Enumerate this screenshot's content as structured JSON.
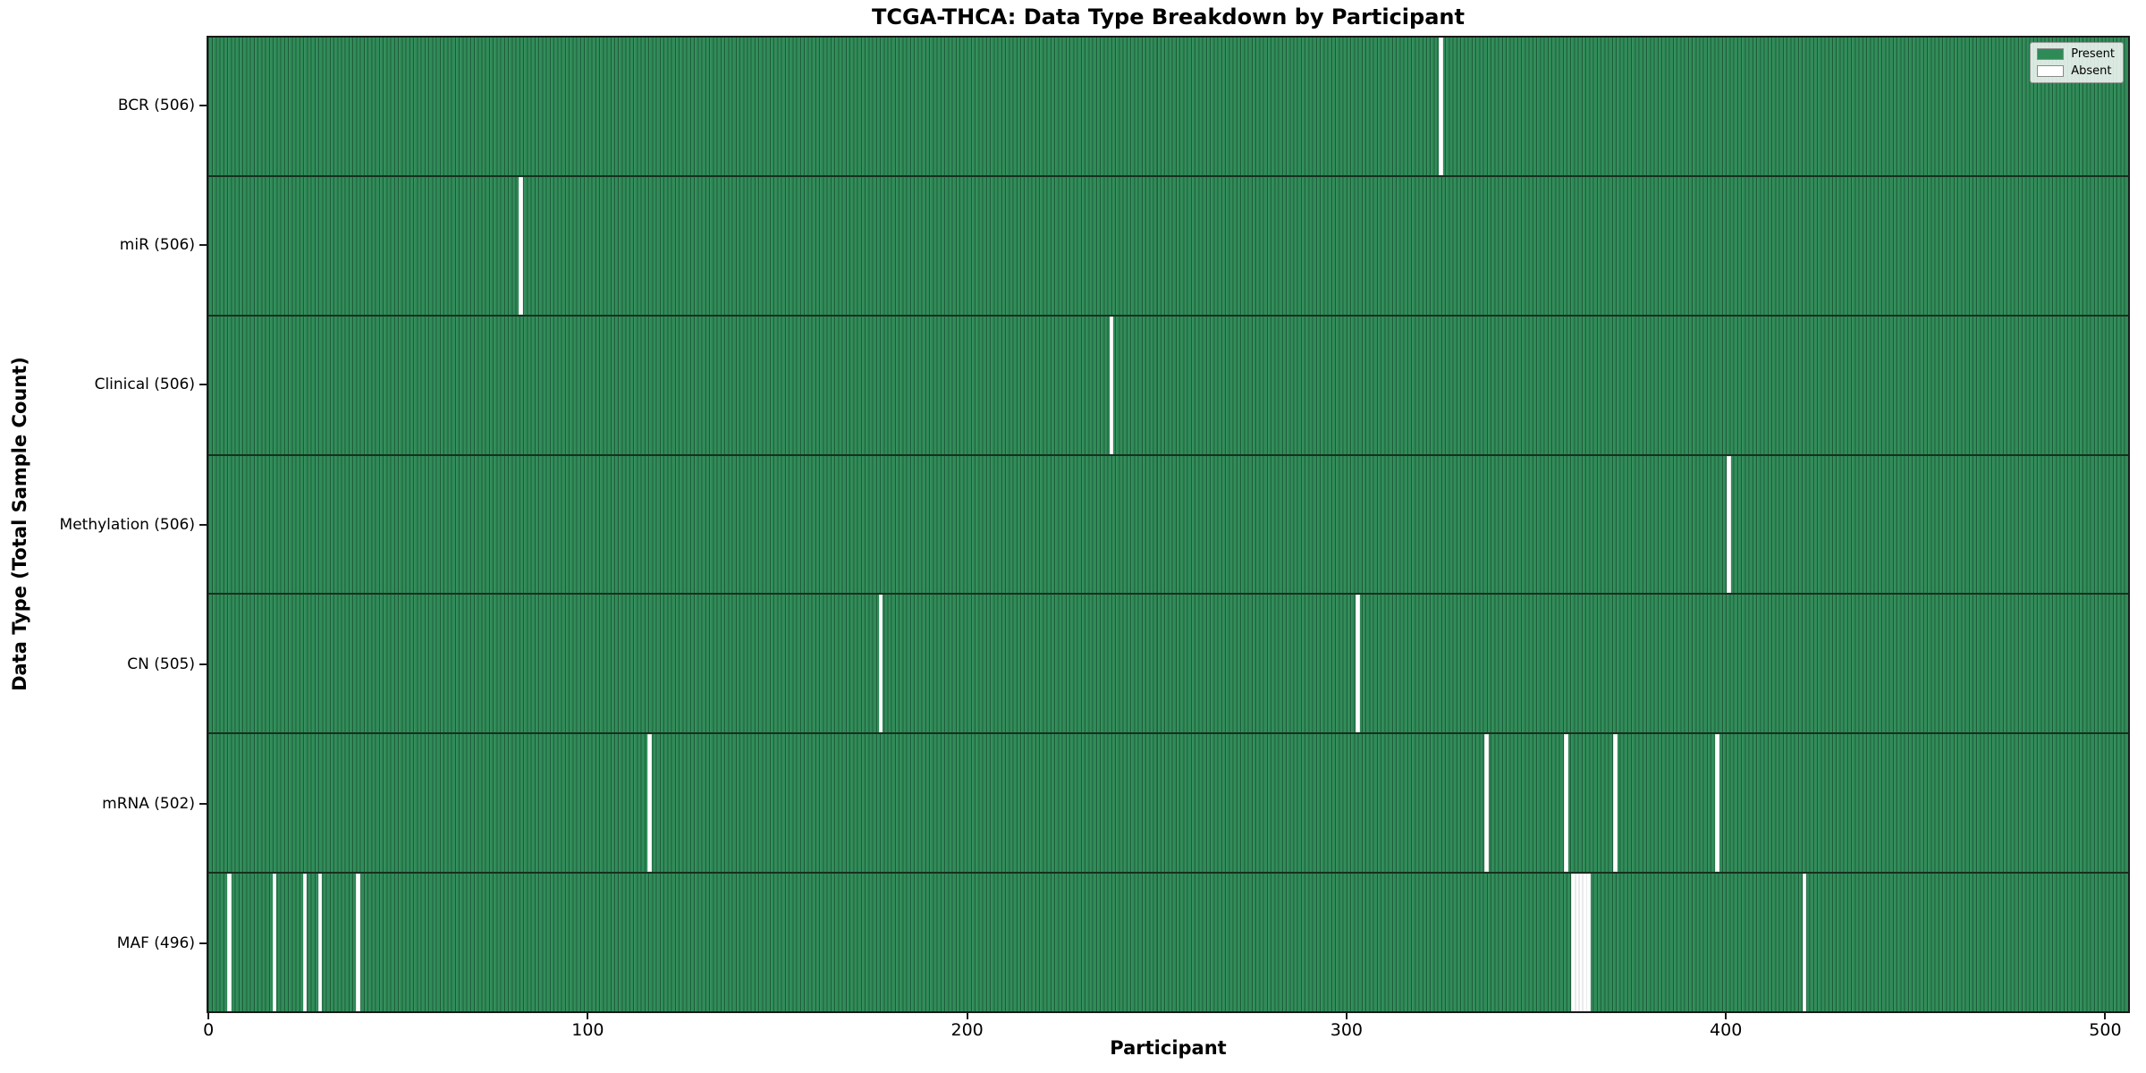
{
  "title": "TCGA-THCA: Data Type Breakdown by Participant",
  "xlabel": "Participant",
  "ylabel": "Data Type (Total Sample Count)",
  "legend": [
    {
      "label": "Present",
      "color": "#2e8b57"
    },
    {
      "label": "Absent",
      "color": "#ffffff"
    }
  ],
  "chart_data": {
    "type": "heatmap",
    "title": "TCGA-THCA: Data Type Breakdown by Participant",
    "xlabel": "Participant",
    "ylabel": "Data Type (Total Sample Count)",
    "total_participants": 507,
    "xlim": [
      -0.5,
      506.5
    ],
    "x_ticks": [
      0,
      100,
      200,
      300,
      400,
      500
    ],
    "x_tick_labels": [
      "0",
      "100",
      "200",
      "300",
      "400",
      "500"
    ],
    "grid": false,
    "legend_position": "upper right",
    "legend_entries": [
      "Present",
      "Absent"
    ],
    "colors": {
      "present": "#2e8b57",
      "absent": "#ffffff",
      "bar_edge": "rgba(0,0,0,0.35)",
      "row_separator": "#17301f",
      "spine": "#1a1a1a"
    },
    "rows": [
      {
        "data_type": "BCR",
        "label": "BCR (506)",
        "present_count": 506,
        "absent_participants": [
          325
        ]
      },
      {
        "data_type": "miR",
        "label": "miR (506)",
        "present_count": 506,
        "absent_participants": [
          82
        ]
      },
      {
        "data_type": "Clinical",
        "label": "Clinical (506)",
        "present_count": 506,
        "absent_participants": [
          238
        ]
      },
      {
        "data_type": "Methylation",
        "label": "Methylation (506)",
        "present_count": 506,
        "absent_participants": [
          401
        ]
      },
      {
        "data_type": "CN",
        "label": "CN (505)",
        "present_count": 505,
        "absent_participants": [
          177,
          303
        ]
      },
      {
        "data_type": "mRNA",
        "label": "mRNA (502)",
        "present_count": 502,
        "absent_participants": [
          116,
          337,
          358,
          371,
          398
        ]
      },
      {
        "data_type": "MAF",
        "label": "MAF (496)",
        "present_count": 496,
        "absent_participants": [
          5,
          17,
          25,
          29,
          39,
          360,
          361,
          362,
          363,
          364,
          421
        ]
      }
    ]
  }
}
